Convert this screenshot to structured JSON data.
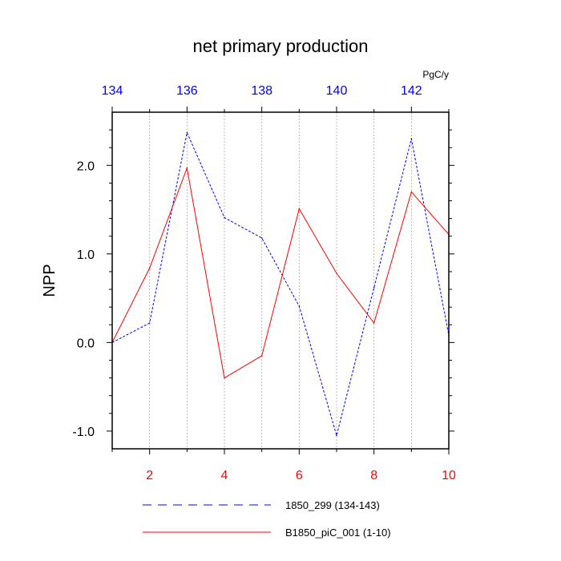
{
  "chart_data": {
    "type": "line",
    "title": "net primary production",
    "units": "PgC/y",
    "ylabel": "NPP",
    "ylim": [
      -1.2,
      2.6
    ],
    "y_ticks": [
      -1.0,
      0.0,
      1.0,
      2.0
    ],
    "y_tick_labels": [
      "-1.0",
      "0.0",
      "1.0",
      "2.0"
    ],
    "x_bottom": {
      "range": [
        1,
        10
      ],
      "ticks": [
        2,
        4,
        6,
        8,
        10
      ],
      "tick_labels": [
        "2",
        "4",
        "6",
        "8",
        "10"
      ],
      "color": "#ff0000"
    },
    "x_top": {
      "range": [
        134,
        143
      ],
      "ticks": [
        134,
        136,
        138,
        140,
        142
      ],
      "tick_labels": [
        "134",
        "136",
        "138",
        "140",
        "142"
      ],
      "color": "#0000ff"
    },
    "grid": "vertical dotted at every year",
    "series": [
      {
        "name": "1850_299 (134-143)",
        "axis": "top",
        "color": "#0000ff",
        "dash": "dashed",
        "x": [
          134,
          135,
          136,
          137,
          138,
          139,
          140,
          141,
          142,
          143
        ],
        "values": [
          0.0,
          0.22,
          2.37,
          1.41,
          1.18,
          0.41,
          -1.05,
          0.62,
          2.3,
          0.08
        ]
      },
      {
        "name": "B1850_piC_001 (1-10)",
        "axis": "bottom",
        "color": "#ff0000",
        "dash": "solid",
        "x": [
          1,
          2,
          3,
          4,
          5,
          6,
          7,
          8,
          9,
          10
        ],
        "values": [
          0.0,
          0.84,
          1.97,
          -0.4,
          -0.15,
          1.51,
          0.78,
          0.22,
          1.7,
          1.22
        ]
      }
    ],
    "legend_position": "bottom"
  }
}
